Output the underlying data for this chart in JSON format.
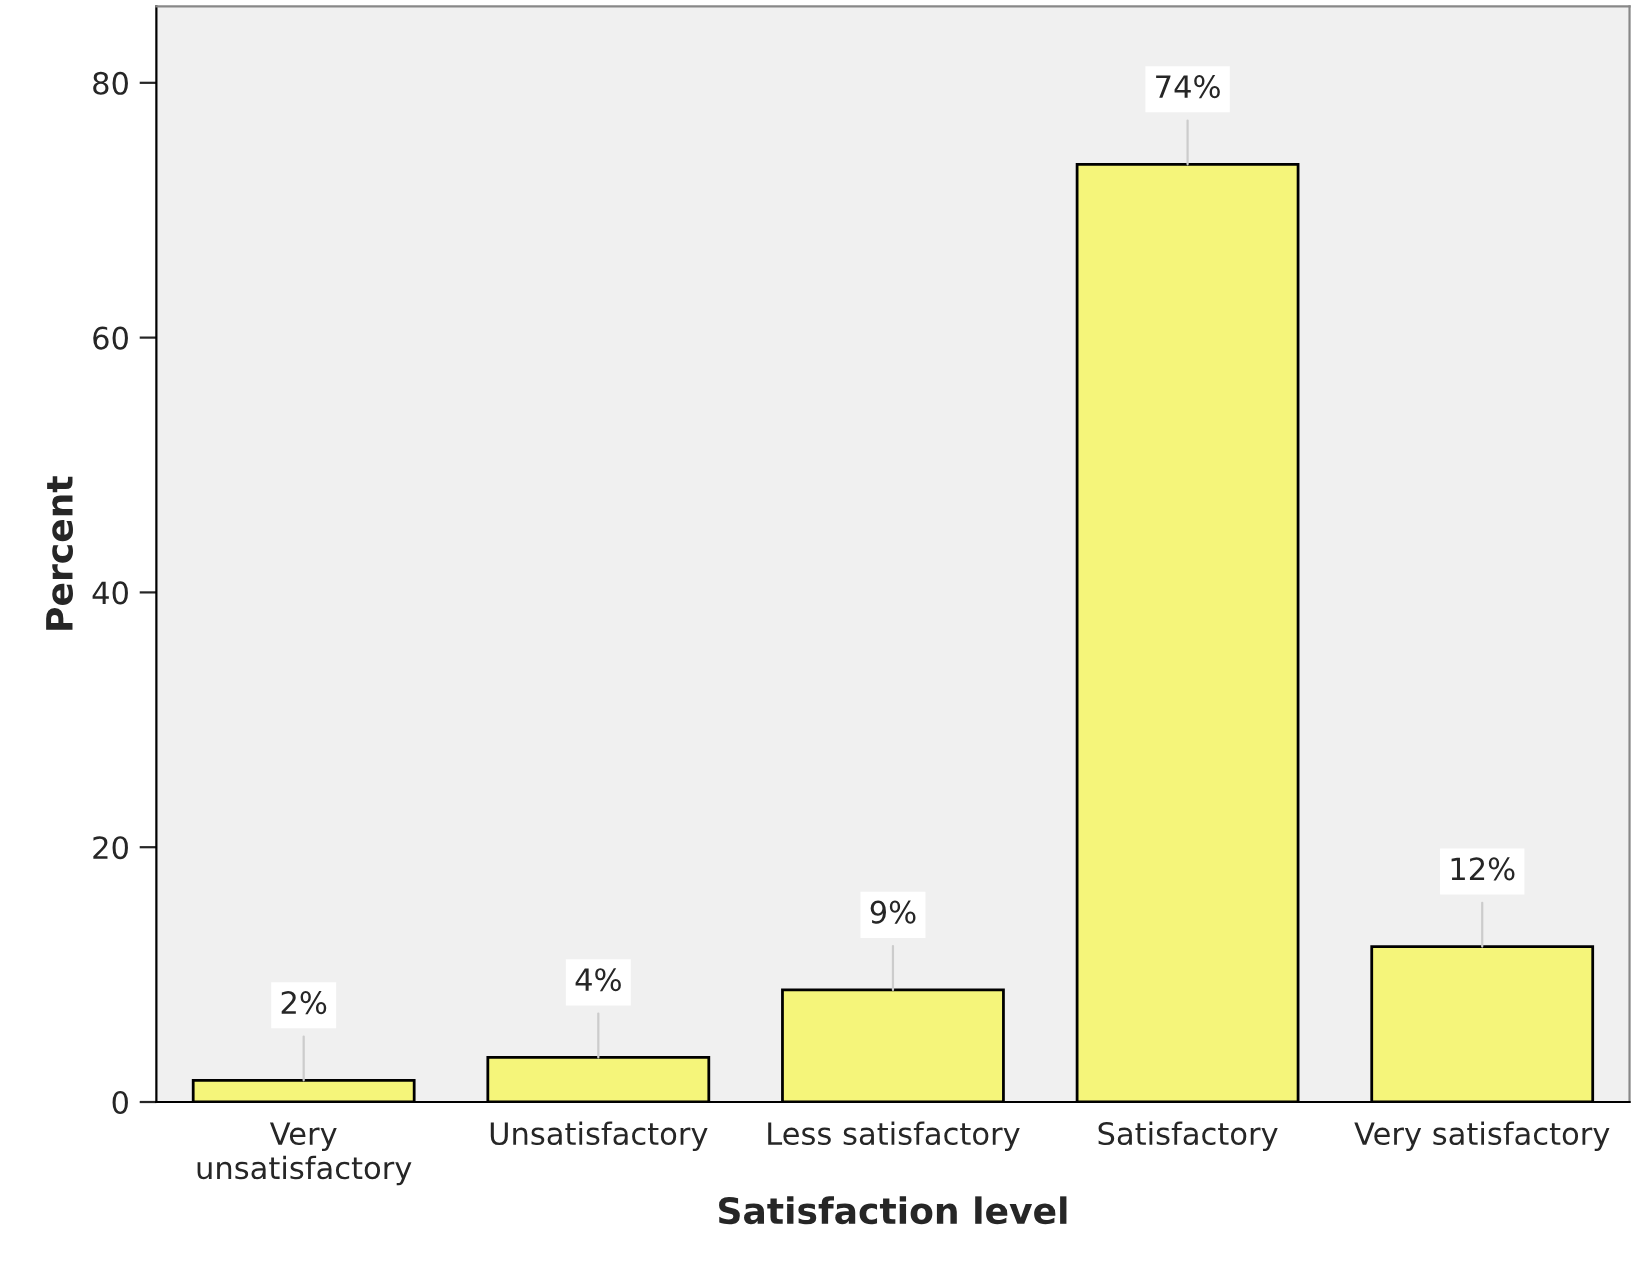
{
  "chart_data": {
    "type": "bar",
    "xlabel": "Satisfaction level",
    "ylabel": "Percent",
    "categories": [
      "Very\nunsatisfactory",
      "Unsatisfactory",
      "Less satisfactory",
      "Satisfactory",
      "Very satisfactory"
    ],
    "values": [
      1.7,
      3.5,
      8.8,
      73.6,
      12.2
    ],
    "value_labels": [
      "2%",
      "4%",
      "9%",
      "74%",
      "12%"
    ],
    "color": "#f5f57a",
    "ylim": [
      0,
      86
    ],
    "yticks": [
      0,
      20,
      40,
      60,
      80
    ],
    "grid": false
  }
}
